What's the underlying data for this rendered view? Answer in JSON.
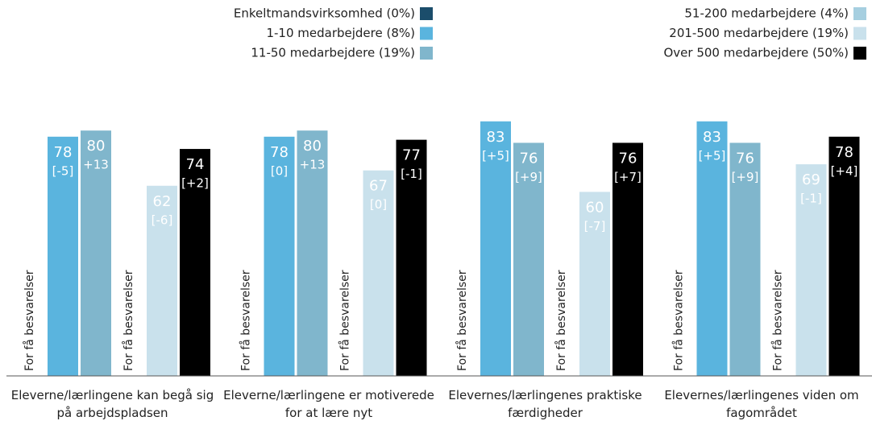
{
  "chart_data": {
    "type": "bar",
    "categories": [
      "Eleverne/lærlingene kan begå sig på arbejdspladsen",
      "Eleverne/lærlingene er motiverede for at lære nyt",
      "Elevernes/lærlingenes praktiske færdigheder",
      "Elevernes/lærlingenes viden om fagområdet"
    ],
    "note": "For få besvarelser",
    "ylim": [
      0,
      100
    ],
    "series": [
      {
        "name": "Enkeltmandsvirksomhed (0%)",
        "color": "#1b4d6b",
        "values": [
          null,
          null,
          null,
          null
        ],
        "changes": [
          null,
          null,
          null,
          null
        ]
      },
      {
        "name": "1-10 medarbejdere (8%)",
        "color": "#5ab4de",
        "values": [
          78,
          78,
          83,
          83
        ],
        "changes": [
          "[-5]",
          "[0]",
          "[+5]",
          "[+5]"
        ]
      },
      {
        "name": "11-50 medarbejdere (19%)",
        "color": "#80b6cc",
        "values": [
          80,
          80,
          76,
          76
        ],
        "changes": [
          "+13",
          "+13",
          "[+9]",
          "[+9]"
        ]
      },
      {
        "name": "51-200 medarbejdere (4%)",
        "color": "#a6cfe0",
        "values": [
          null,
          null,
          null,
          null
        ],
        "changes": [
          null,
          null,
          null,
          null
        ]
      },
      {
        "name": "201-500 medarbejdere (19%)",
        "color": "#c9e1ec",
        "values": [
          62,
          67,
          60,
          69
        ],
        "changes": [
          "[-6]",
          "[0]",
          "[-7]",
          "[-1]"
        ]
      },
      {
        "name": "Over 500 medarbejdere (50%)",
        "color": "#000000",
        "values": [
          74,
          77,
          76,
          78
        ],
        "changes": [
          "[+2]",
          "[-1]",
          "[+7]",
          "[+4]"
        ]
      }
    ]
  }
}
